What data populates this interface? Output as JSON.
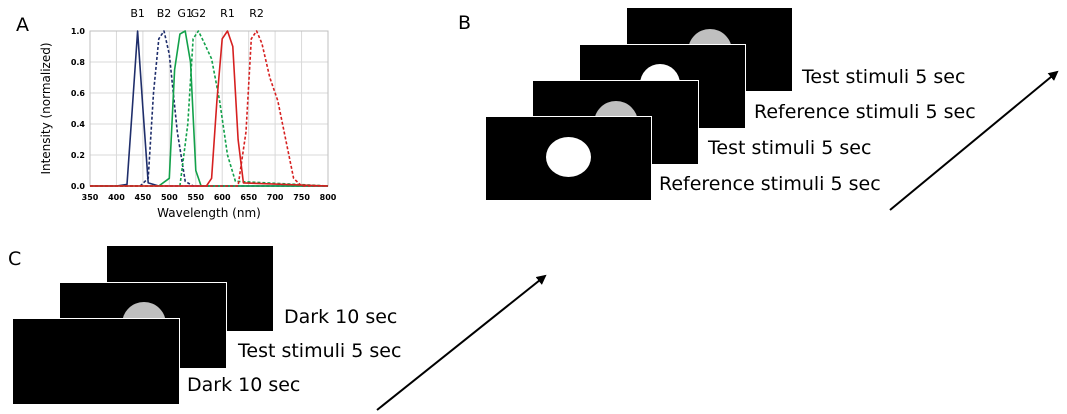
{
  "panels": {
    "a": "A",
    "b": "B",
    "c": "C"
  },
  "panel_b": {
    "captions": [
      "Test stimuli 5 sec",
      "Reference stimuli 5 sec",
      "Test stimuli 5 sec",
      "Reference stimuli 5 sec"
    ]
  },
  "panel_c": {
    "captions": [
      "Dark 10 sec",
      "Test stimuli 5 sec",
      "Dark 10 sec"
    ]
  },
  "chart_data": {
    "type": "line",
    "xlabel": "Wavelength (nm)",
    "ylabel": "Intensity (normalized)",
    "xlim": [
      350,
      800
    ],
    "ylim": [
      0,
      1.0
    ],
    "x_ticks": [
      "350",
      "400",
      "450",
      "500",
      "550",
      "600",
      "650",
      "700",
      "750",
      "800"
    ],
    "y_ticks": [
      "0.0",
      "0.2",
      "0.4",
      "0.6",
      "0.8",
      "1.0"
    ],
    "grid": true,
    "series": [
      {
        "name": "B1",
        "color": "#1f2e6b",
        "dash": false,
        "x": [
          350,
          400,
          420,
          430,
          440,
          450,
          460,
          480,
          800
        ],
        "y": [
          0,
          0,
          0.01,
          0.5,
          1.0,
          0.5,
          0.02,
          0,
          0
        ]
      },
      {
        "name": "B2",
        "color": "#1f2e6b",
        "dash": true,
        "x": [
          350,
          445,
          460,
          470,
          480,
          490,
          500,
          515,
          530,
          545,
          800
        ],
        "y": [
          0,
          0,
          0.05,
          0.6,
          0.95,
          1.0,
          0.85,
          0.35,
          0.03,
          0,
          0
        ]
      },
      {
        "name": "G1",
        "color": "#12a14a",
        "dash": false,
        "x": [
          350,
          480,
          500,
          510,
          520,
          530,
          540,
          550,
          560,
          800
        ],
        "y": [
          0,
          0,
          0.05,
          0.75,
          0.98,
          1.0,
          0.8,
          0.1,
          0,
          0
        ]
      },
      {
        "name": "G2",
        "color": "#12a14a",
        "dash": true,
        "x": [
          350,
          520,
          535,
          545,
          555,
          565,
          580,
          595,
          610,
          625,
          800
        ],
        "y": [
          0,
          0,
          0.4,
          0.95,
          1.0,
          0.93,
          0.82,
          0.55,
          0.2,
          0.03,
          0
        ]
      },
      {
        "name": "R1",
        "color": "#d62020",
        "dash": false,
        "x": [
          350,
          570,
          580,
          590,
          600,
          610,
          620,
          630,
          640,
          800
        ],
        "y": [
          0,
          0,
          0.05,
          0.55,
          0.95,
          1.0,
          0.9,
          0.3,
          0.02,
          0
        ]
      },
      {
        "name": "R2",
        "color": "#d62020",
        "dash": true,
        "x": [
          350,
          630,
          645,
          655,
          665,
          675,
          690,
          705,
          720,
          735,
          750,
          800
        ],
        "y": [
          0,
          0,
          0.35,
          0.95,
          1.0,
          0.92,
          0.7,
          0.55,
          0.3,
          0.05,
          0,
          0
        ]
      }
    ]
  }
}
